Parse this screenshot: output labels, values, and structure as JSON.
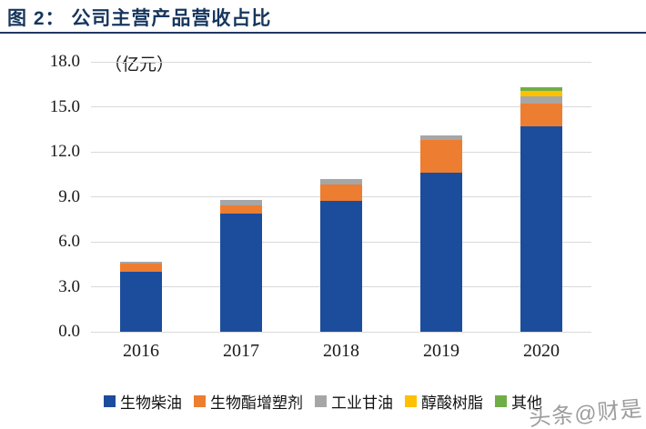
{
  "title": {
    "text": "图 2： 公司主营产品营收占比"
  },
  "watermark": {
    "text": "头条@财是"
  },
  "colors": {
    "title": "#17365D",
    "title_rule": "#1F3864",
    "gridline": "#D9D9D9",
    "axis_text": "#1A1A1A",
    "watermark": "#8C8C8C"
  },
  "chart_data": {
    "type": "bar",
    "stacked": true,
    "title": "公司主营产品营收占比",
    "unit_label": "（亿元）",
    "categories": [
      "2016",
      "2017",
      "2018",
      "2019",
      "2020"
    ],
    "series": [
      {
        "name": "生物柴油",
        "color": "#1C4D9C",
        "values": [
          4.0,
          7.9,
          8.7,
          10.6,
          13.7
        ]
      },
      {
        "name": "生物酯增塑剂",
        "color": "#ED7D31",
        "values": [
          0.55,
          0.5,
          1.1,
          2.2,
          1.5
        ]
      },
      {
        "name": "工业甘油",
        "color": "#A6A6A6",
        "values": [
          0.1,
          0.4,
          0.4,
          0.3,
          0.5
        ]
      },
      {
        "name": "醇酸树脂",
        "color": "#FFC000",
        "values": [
          0,
          0,
          0,
          0,
          0.35
        ]
      },
      {
        "name": "其他",
        "color": "#70AD47",
        "values": [
          0,
          0,
          0,
          0,
          0.25
        ]
      }
    ],
    "ylim": [
      0,
      18
    ],
    "ytick_step": 3,
    "ytick_labels": [
      "0.0",
      "3.0",
      "6.0",
      "9.0",
      "12.0",
      "15.0",
      "18.0"
    ],
    "grid": true,
    "legend_position": "bottom"
  }
}
